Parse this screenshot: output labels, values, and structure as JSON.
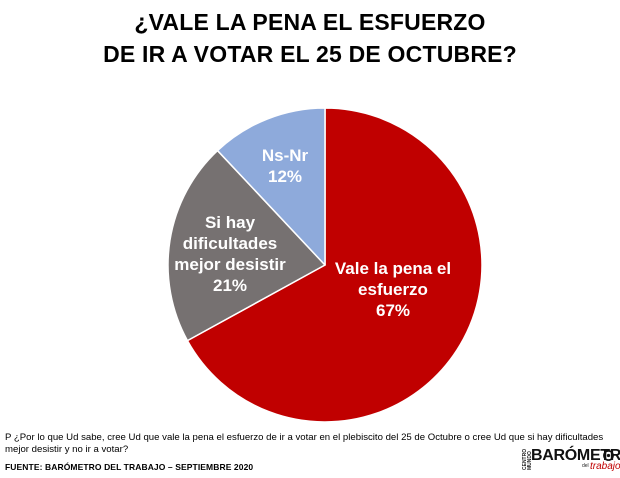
{
  "title": {
    "line1": "¿VALE LA PENA EL ESFUERZO",
    "line2": "DE IR A VOTAR EL 25 DE OCTUBRE?"
  },
  "chart_data": {
    "type": "pie",
    "title": "¿VALE LA PENA EL ESFUERZO DE IR A VOTAR EL 25 DE OCTUBRE?",
    "slices": [
      {
        "label": "Vale la pena el esfuerzo",
        "value": 67,
        "color": "#c00000"
      },
      {
        "label": "Si hay dificultades mejor desistir",
        "value": 21,
        "color": "#767171"
      },
      {
        "label": "Ns-Nr",
        "value": 12,
        "color": "#8eaadb"
      }
    ],
    "start_angle_deg": 0,
    "direction": "clockwise"
  },
  "labels": {
    "ns": {
      "line1": "Ns-Nr",
      "pct": "12%"
    },
    "si": {
      "line1": "Si hay",
      "line2": "dificultades",
      "line3": "mejor desistir",
      "pct": "21%"
    },
    "vale": {
      "line1": "Vale la pena el",
      "line2": "esfuerzo",
      "pct": "67%"
    }
  },
  "footer": {
    "question": "P ¿Por lo que Ud sabe, cree Ud que vale la pena el esfuerzo de ir a votar en el plebiscito del 25 de Octubre o cree Ud que si hay dificultades mejor desistir y no ir a votar?",
    "source": "FUENTE: BARÓMETRO DEL TRABAJO – SEPTIEMBRE 2020"
  },
  "logo": {
    "small": "CENTRO MUNDO",
    "main": "BARÓMETR",
    "sub_small": "del",
    "sub": "trabajo"
  }
}
